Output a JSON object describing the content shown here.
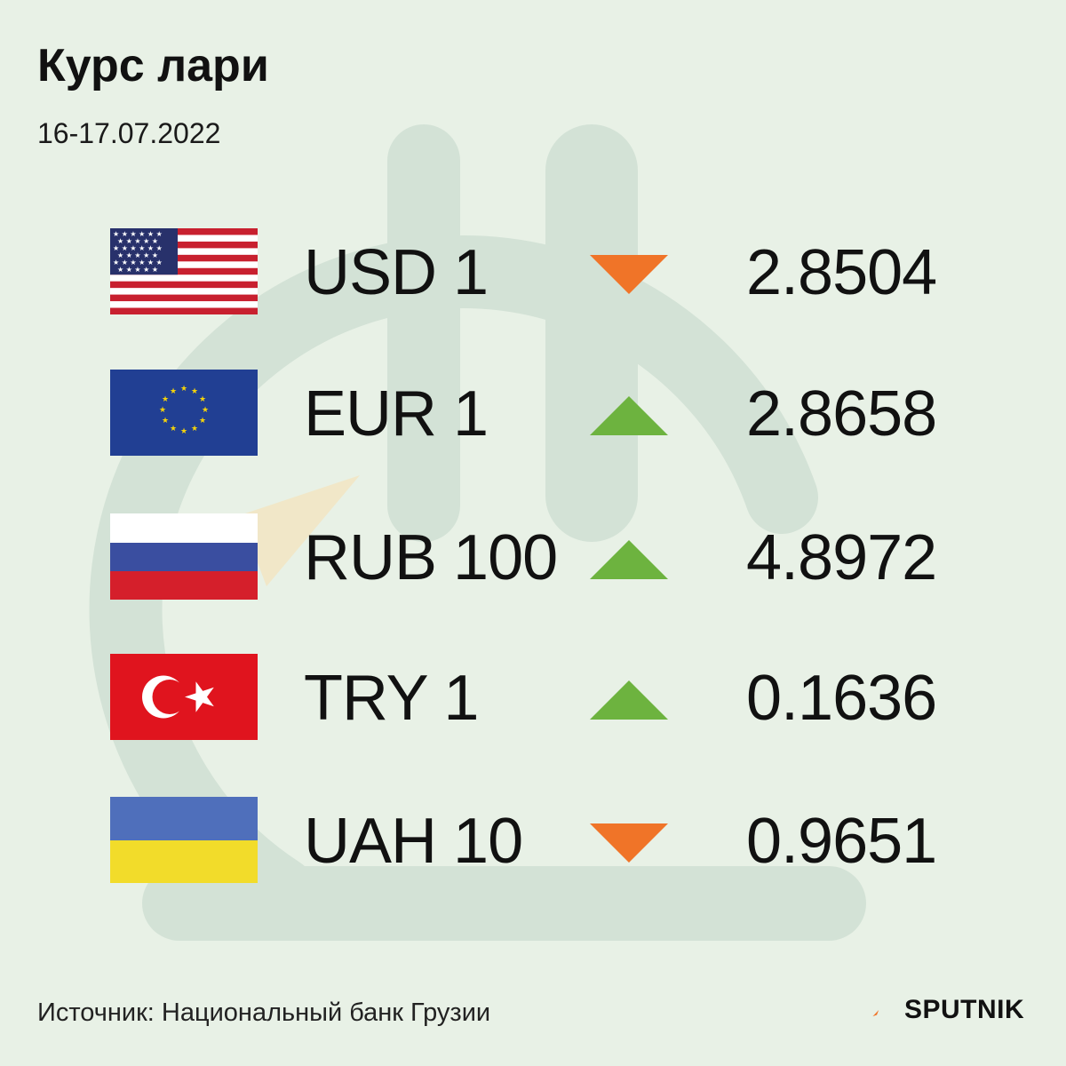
{
  "header": {
    "title": "Курс лари",
    "date": "16-17.07.2022"
  },
  "rates": [
    {
      "flag": "usa-flag",
      "code": "USD 1",
      "trend": "down",
      "value": "2.8504"
    },
    {
      "flag": "eu-flag",
      "code": "EUR 1",
      "trend": "up",
      "value": "2.8658"
    },
    {
      "flag": "russia-flag",
      "code": "RUB 100",
      "trend": "up",
      "value": "4.8972"
    },
    {
      "flag": "turkey-flag",
      "code": "TRY 1",
      "trend": "up",
      "value": "0.1636"
    },
    {
      "flag": "ukraine-flag",
      "code": "UAH 10",
      "trend": "down",
      "value": "0.9651"
    }
  ],
  "footer": {
    "source": "Источник: Национальный банк Грузии",
    "brand": "SPUTNIK"
  },
  "colors": {
    "background": "#e8f1e6",
    "up": "#6db33f",
    "down": "#f07428",
    "watermark": "#d3e2d6"
  }
}
